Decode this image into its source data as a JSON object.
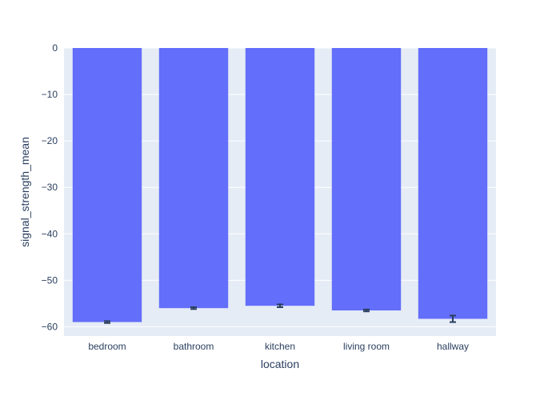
{
  "chart_data": {
    "type": "bar",
    "xlabel": "location",
    "ylabel": "signal_strength_mean",
    "categories": [
      "bedroom",
      "bathroom",
      "kitchen",
      "living room",
      "hallway"
    ],
    "values": [
      -59.0,
      -56.0,
      -55.5,
      -56.5,
      -58.3
    ],
    "error": [
      0.2,
      0.2,
      0.3,
      0.2,
      0.7
    ],
    "ylim": [
      -62,
      0
    ],
    "yticks": [
      0,
      -10,
      -20,
      -30,
      -40,
      -50,
      -60
    ],
    "ytick_labels": [
      "0",
      "−10",
      "−20",
      "−30",
      "−40",
      "−50",
      "−60"
    ],
    "grid": true,
    "colors": {
      "bar": "#636efa",
      "plot_bg": "#e5ecf6",
      "grid": "#ffffff",
      "text": "#2a3f5f",
      "error_bar": "#2a3f5f"
    }
  }
}
